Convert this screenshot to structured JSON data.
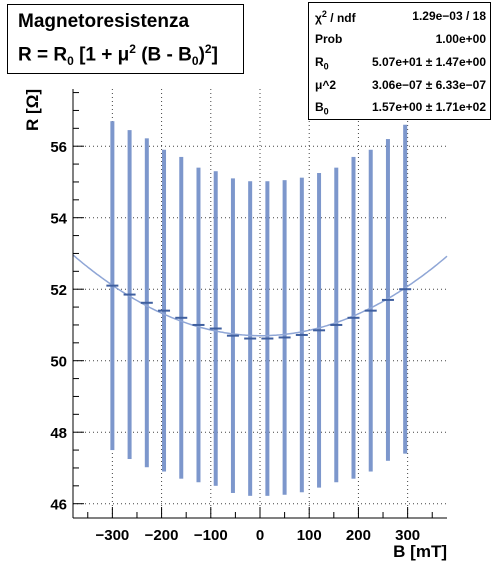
{
  "title": {
    "line1": "Magnetoresistenza",
    "line2_lhs": "R = R",
    "line2_sub0": "0",
    "line2_mid": " [1 + μ",
    "line2_sup2": "2",
    "line2_mid2": " (B - B",
    "line2_sub0b": "0",
    "line2_close": ")",
    "line2_sup2b": "2",
    "line2_end": "]"
  },
  "stats": {
    "chi2_key": "χ",
    "chi2_sup": "2",
    "chi2_rest": " / ndf",
    "chi2_val": "1.29e−03 / 18",
    "prob_key": "Prob",
    "prob_val": "1.00e+00",
    "r0_key": "R",
    "r0_sub": "0",
    "r0_val": "5.07e+01 ± 1.47e+00",
    "mu_key": "μ^2",
    "mu_val": "3.06e−07 ± 6.33e−07",
    "b0_key": "B",
    "b0_sub": "0",
    "b0_val": "1.57e+00 ± 1.71e+02"
  },
  "chart_data": {
    "type": "scatter",
    "xlabel": "B [mT]",
    "ylabel": "R [Ω]",
    "xlim": [
      -380,
      380
    ],
    "ylim": [
      45.6,
      57.6
    ],
    "xticks": [
      -300,
      -200,
      -100,
      0,
      100,
      200,
      300
    ],
    "xtick_labels": [
      "−300",
      "−200",
      "−100",
      "0",
      "100",
      "200",
      "300"
    ],
    "yticks": [
      46,
      48,
      50,
      52,
      54,
      56
    ],
    "ytick_labels": [
      "46",
      "48",
      "50",
      "52",
      "54",
      "56"
    ],
    "grid": true,
    "x": [
      -300,
      -265,
      -230,
      -195,
      -160,
      -125,
      -90,
      -55,
      -20,
      15,
      50,
      85,
      120,
      155,
      190,
      225,
      260,
      295
    ],
    "y": [
      52.1,
      51.85,
      51.62,
      51.4,
      51.2,
      51.0,
      50.9,
      50.7,
      50.62,
      50.62,
      50.65,
      50.72,
      50.85,
      51.0,
      51.2,
      51.4,
      51.7,
      52.0
    ],
    "y_err": [
      4.6,
      4.6,
      4.6,
      4.5,
      4.5,
      4.4,
      4.4,
      4.4,
      4.4,
      4.4,
      4.4,
      4.4,
      4.4,
      4.4,
      4.5,
      4.5,
      4.5,
      4.6
    ],
    "fit_curve": {
      "R0": 50.7,
      "mu2": 3.06e-07,
      "B0": 1.57,
      "scale": 1000000.0
    },
    "colors": {
      "errorbar": "#7d97cc",
      "fit": "#8fa6d6",
      "marker": "#3f5f9f",
      "grid": "#444444"
    }
  }
}
